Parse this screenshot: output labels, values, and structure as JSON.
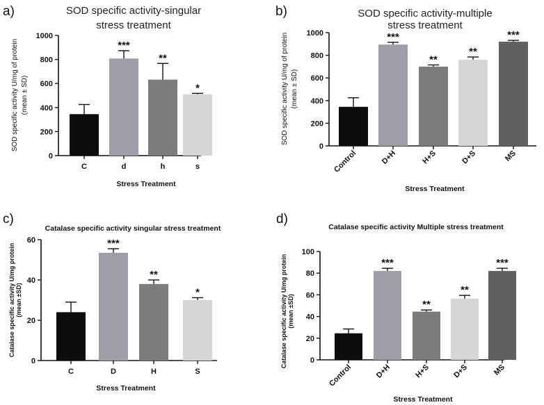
{
  "figure": {
    "panels": [
      "a)",
      "b)",
      "c)",
      "d)"
    ]
  },
  "chart_data": [
    {
      "id": "a",
      "type": "bar",
      "panel_label": "a)",
      "title_lines": [
        "SOD specific activity-singular",
        "stress treatment"
      ],
      "ylabel_lines": [
        "SOD specific activity U/mg of protein",
        "(mean ± SD)"
      ],
      "xlabel": "Stress Treatment",
      "categories": [
        "C",
        "d",
        "h",
        "s"
      ],
      "values": [
        345,
        808,
        632,
        510
      ],
      "errors": [
        80,
        65,
        135,
        8
      ],
      "colors": [
        "#0d0d0d",
        "#9e9ea6",
        "#7c7c7c",
        "#d6d6d6"
      ],
      "significance": [
        "",
        "***",
        "**",
        "*"
      ],
      "ylim": [
        0,
        1000
      ],
      "yticks": [
        "0",
        "200",
        "400",
        "600",
        "800",
        "1000"
      ],
      "cat_rotation": 0
    },
    {
      "id": "b",
      "type": "bar",
      "panel_label": "b)",
      "title_lines": [
        "SOD specific activity-multiple",
        "stress treatment"
      ],
      "ylabel_lines": [
        "SOD specific activity U/mg of protein",
        "(mean ± SD)"
      ],
      "xlabel": "Stress Treatment",
      "categories": [
        "Control",
        "D+H",
        "H+S",
        "D+S",
        "MS"
      ],
      "values": [
        345,
        895,
        700,
        760,
        920
      ],
      "errors": [
        80,
        20,
        15,
        25,
        12
      ],
      "colors": [
        "#0d0d0d",
        "#9e9ea6",
        "#7c7c7c",
        "#d6d6d6",
        "#606060"
      ],
      "significance": [
        "",
        "***",
        "**",
        "**",
        "***"
      ],
      "ylim": [
        0,
        1000
      ],
      "yticks": [
        "0",
        "200",
        "400",
        "600",
        "800",
        "1000"
      ],
      "cat_rotation": -45
    },
    {
      "id": "c",
      "type": "bar",
      "panel_label": "c)",
      "title_lines": [
        "Catalase specific activity singular stress treatment"
      ],
      "ylabel_lines": [
        "Catalase specific activity U/mg protein",
        "(mean ±SD)"
      ],
      "xlabel": "Stress Treatment",
      "categories": [
        "C",
        "D",
        "H",
        "S"
      ],
      "values": [
        24,
        53.5,
        38,
        30
      ],
      "errors": [
        5,
        2,
        2,
        1.2
      ],
      "colors": [
        "#0d0d0d",
        "#9e9ea6",
        "#7c7c7c",
        "#d6d6d6"
      ],
      "significance": [
        "",
        "***",
        "**",
        "*"
      ],
      "ylim": [
        0,
        60
      ],
      "yticks": [
        "0",
        "20",
        "40",
        "60"
      ],
      "cat_rotation": 0
    },
    {
      "id": "d",
      "type": "bar",
      "panel_label": "d)",
      "title_lines": [
        "Catalase specific activity Multiple stress treatment"
      ],
      "ylabel_lines": [
        "Catalase specific activity U/mg protein",
        "(mean ±SD)"
      ],
      "xlabel": "Stress Treatment",
      "categories": [
        "Control",
        "D+H",
        "H+S",
        "D+S",
        "MS"
      ],
      "values": [
        24.5,
        82,
        44.5,
        56.5,
        82
      ],
      "errors": [
        4,
        2.5,
        1.5,
        3,
        2.5
      ],
      "colors": [
        "#0d0d0d",
        "#9e9ea6",
        "#7c7c7c",
        "#d6d6d6",
        "#606060"
      ],
      "significance": [
        "",
        "***",
        "**",
        "**",
        "***"
      ],
      "ylim": [
        0,
        100
      ],
      "yticks": [
        "0",
        "20",
        "40",
        "60",
        "80",
        "100"
      ],
      "cat_rotation": -45
    }
  ]
}
